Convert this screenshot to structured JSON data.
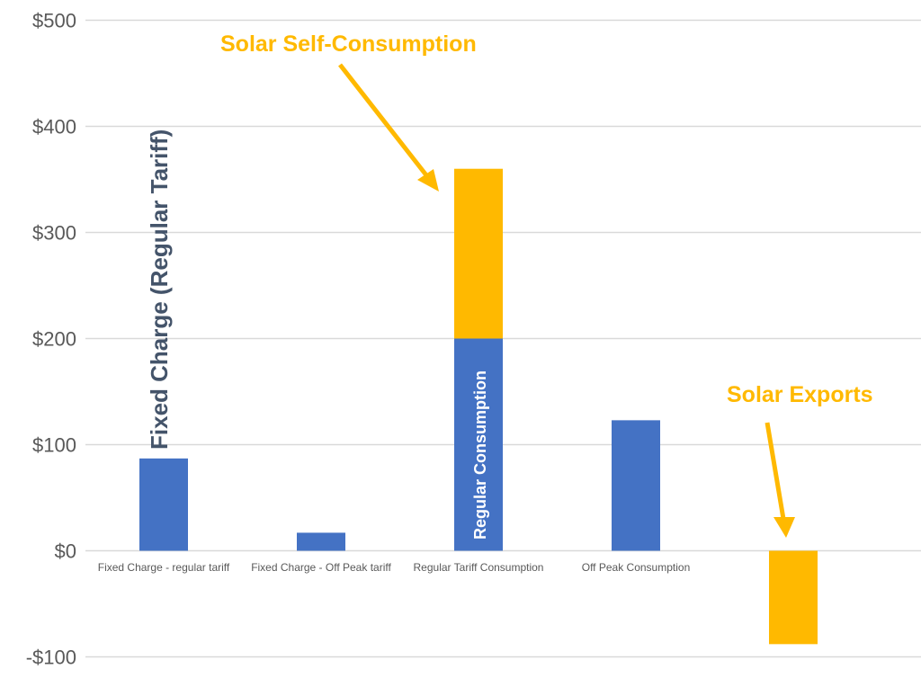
{
  "chart_data": {
    "type": "bar",
    "stacked": true,
    "categories": [
      "Fixed Charge - regular tariff",
      "Fixed Charge - Off Peak tariff",
      "Regular Tariff Consumption",
      "Off Peak Consumption",
      ""
    ],
    "series": [
      {
        "values": [
          87,
          17,
          200,
          123,
          0
        ],
        "color": "#4472C4"
      },
      {
        "values": [
          0,
          0,
          160,
          0,
          -88
        ],
        "color": "#FFB900"
      }
    ],
    "ylim": [
      -100,
      500
    ],
    "yticks": [
      -100,
      0,
      100,
      200,
      300,
      400,
      500
    ],
    "ytick_labels": [
      "-$100",
      "$0",
      "$100",
      "$200",
      "$300",
      "$400",
      "$500"
    ],
    "grid": true,
    "annotations": {
      "solar_self_consumption": "Solar Self-Consumption",
      "solar_exports": "Solar Exports",
      "fixed_charge": "Fixed Charge (Regular Tariff)",
      "regular_consumption": "Regular Consumption"
    },
    "annotation_colors": {
      "orange": "#FFB900",
      "dark": "#44546A",
      "white": "#FFFFFF"
    }
  }
}
